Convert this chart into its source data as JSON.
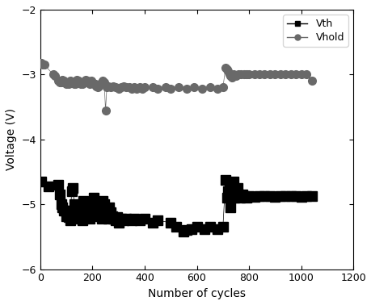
{
  "title": "",
  "xlabel": "Number of cycles",
  "ylabel": "Voltage (V)",
  "xlim": [
    0,
    1200
  ],
  "ylim": [
    -6,
    -2
  ],
  "yticks": [
    -6,
    -5,
    -4,
    -3,
    -2
  ],
  "xticks": [
    0,
    200,
    400,
    600,
    800,
    1000,
    1200
  ],
  "background_color": "#ffffff",
  "vth_color": "#000000",
  "vhold_color": "#696969",
  "vth_data": [
    [
      5,
      -4.65
    ],
    [
      30,
      -4.72
    ],
    [
      70,
      -4.7
    ],
    [
      75,
      -4.85
    ],
    [
      80,
      -5.0
    ],
    [
      85,
      -5.05
    ],
    [
      90,
      -5.1
    ],
    [
      95,
      -5.1
    ],
    [
      100,
      -5.18
    ],
    [
      105,
      -5.12
    ],
    [
      110,
      -5.2
    ],
    [
      115,
      -5.25
    ],
    [
      120,
      -4.8
    ],
    [
      125,
      -4.75
    ],
    [
      130,
      -5.0
    ],
    [
      135,
      -5.05
    ],
    [
      140,
      -5.12
    ],
    [
      145,
      -5.15
    ],
    [
      150,
      -5.18
    ],
    [
      155,
      -5.22
    ],
    [
      160,
      -5.25
    ],
    [
      165,
      -4.95
    ],
    [
      170,
      -5.0
    ],
    [
      175,
      -5.1
    ],
    [
      180,
      -5.15
    ],
    [
      185,
      -5.18
    ],
    [
      190,
      -5.22
    ],
    [
      195,
      -5.0
    ],
    [
      200,
      -5.05
    ],
    [
      205,
      -4.9
    ],
    [
      210,
      -5.0
    ],
    [
      215,
      -5.05
    ],
    [
      220,
      -5.1
    ],
    [
      225,
      -5.15
    ],
    [
      230,
      -5.18
    ],
    [
      235,
      -5.22
    ],
    [
      240,
      -4.95
    ],
    [
      245,
      -5.0
    ],
    [
      250,
      -5.1
    ],
    [
      255,
      -5.18
    ],
    [
      260,
      -5.22
    ],
    [
      265,
      -5.05
    ],
    [
      270,
      -5.12
    ],
    [
      275,
      -5.18
    ],
    [
      280,
      -5.22
    ],
    [
      290,
      -5.25
    ],
    [
      295,
      -5.2
    ],
    [
      300,
      -5.28
    ],
    [
      310,
      -5.22
    ],
    [
      320,
      -5.25
    ],
    [
      330,
      -5.22
    ],
    [
      350,
      -5.25
    ],
    [
      360,
      -5.22
    ],
    [
      380,
      -5.25
    ],
    [
      400,
      -5.22
    ],
    [
      430,
      -5.28
    ],
    [
      450,
      -5.25
    ],
    [
      500,
      -5.28
    ],
    [
      520,
      -5.35
    ],
    [
      550,
      -5.42
    ],
    [
      560,
      -5.4
    ],
    [
      580,
      -5.38
    ],
    [
      600,
      -5.35
    ],
    [
      630,
      -5.38
    ],
    [
      650,
      -5.35
    ],
    [
      680,
      -5.38
    ],
    [
      700,
      -5.35
    ],
    [
      710,
      -4.62
    ],
    [
      715,
      -4.9
    ],
    [
      720,
      -4.8
    ],
    [
      725,
      -4.75
    ],
    [
      730,
      -5.05
    ],
    [
      735,
      -4.8
    ],
    [
      740,
      -4.65
    ],
    [
      745,
      -4.9
    ],
    [
      750,
      -4.8
    ],
    [
      755,
      -4.75
    ],
    [
      760,
      -4.85
    ],
    [
      765,
      -4.9
    ],
    [
      770,
      -4.88
    ],
    [
      775,
      -4.85
    ],
    [
      780,
      -4.87
    ],
    [
      785,
      -4.88
    ],
    [
      790,
      -4.9
    ],
    [
      795,
      -4.88
    ],
    [
      800,
      -4.87
    ],
    [
      820,
      -4.88
    ],
    [
      840,
      -4.87
    ],
    [
      860,
      -4.87
    ],
    [
      880,
      -4.87
    ],
    [
      900,
      -4.88
    ],
    [
      920,
      -4.87
    ],
    [
      940,
      -4.87
    ],
    [
      960,
      -4.87
    ],
    [
      980,
      -4.87
    ],
    [
      1000,
      -4.88
    ],
    [
      1020,
      -4.87
    ],
    [
      1040,
      -4.87
    ]
  ],
  "vhold_data": [
    [
      5,
      -2.82
    ],
    [
      10,
      -2.85
    ],
    [
      15,
      -2.85
    ],
    [
      50,
      -3.0
    ],
    [
      55,
      -3.02
    ],
    [
      70,
      -3.1
    ],
    [
      75,
      -3.12
    ],
    [
      80,
      -3.12
    ],
    [
      85,
      -3.08
    ],
    [
      90,
      -3.1
    ],
    [
      95,
      -3.12
    ],
    [
      100,
      -3.14
    ],
    [
      105,
      -3.12
    ],
    [
      110,
      -3.15
    ],
    [
      115,
      -3.1
    ],
    [
      120,
      -3.12
    ],
    [
      125,
      -3.12
    ],
    [
      130,
      -3.14
    ],
    [
      135,
      -3.15
    ],
    [
      140,
      -3.08
    ],
    [
      145,
      -3.1
    ],
    [
      150,
      -3.12
    ],
    [
      155,
      -3.14
    ],
    [
      160,
      -3.15
    ],
    [
      165,
      -3.12
    ],
    [
      170,
      -3.1
    ],
    [
      175,
      -3.08
    ],
    [
      180,
      -3.1
    ],
    [
      185,
      -3.12
    ],
    [
      190,
      -3.14
    ],
    [
      195,
      -3.1
    ],
    [
      200,
      -3.12
    ],
    [
      205,
      -3.14
    ],
    [
      210,
      -3.15
    ],
    [
      215,
      -3.18
    ],
    [
      220,
      -3.2
    ],
    [
      225,
      -3.18
    ],
    [
      230,
      -3.14
    ],
    [
      235,
      -3.12
    ],
    [
      240,
      -3.1
    ],
    [
      245,
      -3.12
    ],
    [
      250,
      -3.55
    ],
    [
      255,
      -3.2
    ],
    [
      260,
      -3.18
    ],
    [
      270,
      -3.2
    ],
    [
      280,
      -3.18
    ],
    [
      290,
      -3.2
    ],
    [
      300,
      -3.22
    ],
    [
      310,
      -3.2
    ],
    [
      320,
      -3.18
    ],
    [
      330,
      -3.2
    ],
    [
      340,
      -3.2
    ],
    [
      350,
      -3.22
    ],
    [
      360,
      -3.2
    ],
    [
      370,
      -3.22
    ],
    [
      380,
      -3.2
    ],
    [
      390,
      -3.22
    ],
    [
      400,
      -3.2
    ],
    [
      430,
      -3.2
    ],
    [
      450,
      -3.22
    ],
    [
      480,
      -3.2
    ],
    [
      500,
      -3.22
    ],
    [
      530,
      -3.2
    ],
    [
      560,
      -3.22
    ],
    [
      590,
      -3.2
    ],
    [
      620,
      -3.22
    ],
    [
      650,
      -3.2
    ],
    [
      680,
      -3.22
    ],
    [
      700,
      -3.2
    ],
    [
      710,
      -2.9
    ],
    [
      715,
      -2.92
    ],
    [
      720,
      -2.95
    ],
    [
      725,
      -3.0
    ],
    [
      730,
      -3.02
    ],
    [
      735,
      -3.05
    ],
    [
      740,
      -3.0
    ],
    [
      745,
      -3.02
    ],
    [
      750,
      -3.02
    ],
    [
      760,
      -3.0
    ],
    [
      770,
      -3.0
    ],
    [
      780,
      -3.0
    ],
    [
      790,
      -3.0
    ],
    [
      800,
      -3.0
    ],
    [
      820,
      -3.0
    ],
    [
      840,
      -3.0
    ],
    [
      860,
      -3.0
    ],
    [
      880,
      -3.0
    ],
    [
      900,
      -3.0
    ],
    [
      920,
      -3.0
    ],
    [
      940,
      -3.0
    ],
    [
      960,
      -3.0
    ],
    [
      980,
      -3.0
    ],
    [
      1000,
      -3.0
    ],
    [
      1020,
      -3.0
    ],
    [
      1040,
      -3.1
    ]
  ]
}
